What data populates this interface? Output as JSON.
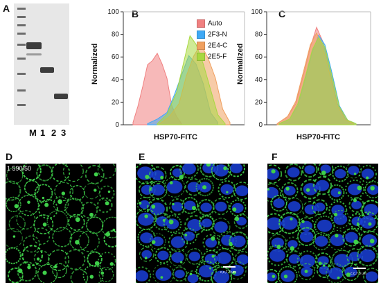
{
  "panels": {
    "a": {
      "letter": "A"
    },
    "b": {
      "letter": "B"
    },
    "c": {
      "letter": "C"
    },
    "d": {
      "letter": "D",
      "overlay_text": "1 590/50"
    },
    "e": {
      "letter": "E",
      "scalebar_text": "c,c,7.3 um"
    },
    "f": {
      "letter": "F",
      "scalebar_text": "c,c,7.3 um"
    }
  },
  "gel": {
    "lane_labels": [
      "M",
      "1",
      "2",
      "3"
    ]
  },
  "chart_data": [
    {
      "type": "area",
      "panel": "B",
      "ylabel": "Normalized",
      "xlabel": "HSP70-FITC",
      "ylim": [
        0,
        100
      ],
      "yticks": [
        0,
        20,
        40,
        60,
        80,
        100
      ],
      "x_range": [
        0,
        1
      ],
      "legend": "top-right",
      "series": [
        {
          "name": "Auto",
          "color": "#f08080",
          "x": [
            0.08,
            0.12,
            0.16,
            0.2,
            0.24,
            0.28,
            0.32,
            0.36,
            0.4,
            0.44,
            0.48
          ],
          "y": [
            2,
            15,
            35,
            52,
            58,
            62,
            55,
            40,
            18,
            6,
            1
          ]
        },
        {
          "name": "2F3-N",
          "color": "#3fa9f5",
          "x": [
            0.2,
            0.28,
            0.36,
            0.42,
            0.48,
            0.54,
            0.6,
            0.66,
            0.72,
            0.78
          ],
          "y": [
            1,
            5,
            12,
            25,
            45,
            60,
            55,
            35,
            12,
            2
          ]
        },
        {
          "name": "2E4-C",
          "color": "#f0a060",
          "x": [
            0.3,
            0.38,
            0.46,
            0.52,
            0.58,
            0.64,
            0.7,
            0.76,
            0.82,
            0.88
          ],
          "y": [
            1,
            6,
            20,
            42,
            62,
            70,
            60,
            40,
            15,
            2
          ]
        },
        {
          "name": "2E5-F",
          "color": "#a8d840",
          "x": [
            0.28,
            0.36,
            0.44,
            0.5,
            0.55,
            0.6,
            0.66,
            0.72,
            0.78,
            0.84
          ],
          "y": [
            1,
            8,
            30,
            55,
            80,
            70,
            55,
            30,
            10,
            1
          ]
        }
      ]
    },
    {
      "type": "area",
      "panel": "C",
      "ylabel": "Normalized",
      "xlabel": "HSP70-FITC",
      "ylim": [
        0,
        100
      ],
      "yticks": [
        0,
        20,
        40,
        60,
        80,
        100
      ],
      "x_range": [
        0,
        1
      ],
      "series": [
        {
          "color": "#f08080",
          "x": [
            0.1,
            0.2,
            0.28,
            0.36,
            0.42,
            0.48,
            0.54,
            0.6,
            0.68,
            0.76,
            0.84
          ],
          "y": [
            1,
            6,
            20,
            45,
            70,
            85,
            75,
            50,
            20,
            5,
            1
          ]
        },
        {
          "color": "#3fa9f5",
          "x": [
            0.12,
            0.22,
            0.3,
            0.38,
            0.44,
            0.5,
            0.56,
            0.62,
            0.7,
            0.78,
            0.86
          ],
          "y": [
            1,
            5,
            18,
            42,
            66,
            78,
            72,
            48,
            18,
            4,
            1
          ]
        },
        {
          "color": "#f0a060",
          "x": [
            0.1,
            0.2,
            0.28,
            0.36,
            0.42,
            0.48,
            0.54,
            0.6,
            0.68,
            0.76,
            0.84
          ],
          "y": [
            1,
            6,
            22,
            48,
            72,
            80,
            70,
            46,
            18,
            4,
            1
          ]
        },
        {
          "color": "#a8d840",
          "x": [
            0.12,
            0.22,
            0.3,
            0.38,
            0.44,
            0.5,
            0.56,
            0.62,
            0.7,
            0.78,
            0.86
          ],
          "y": [
            1,
            5,
            20,
            44,
            68,
            76,
            70,
            45,
            17,
            4,
            1
          ]
        }
      ]
    }
  ],
  "colors": {
    "gel_bg": "#e7e7e7",
    "gel_band": "#4a4a4a",
    "micro_green": "#3fd04a",
    "micro_blue": "#1a3fd8"
  }
}
